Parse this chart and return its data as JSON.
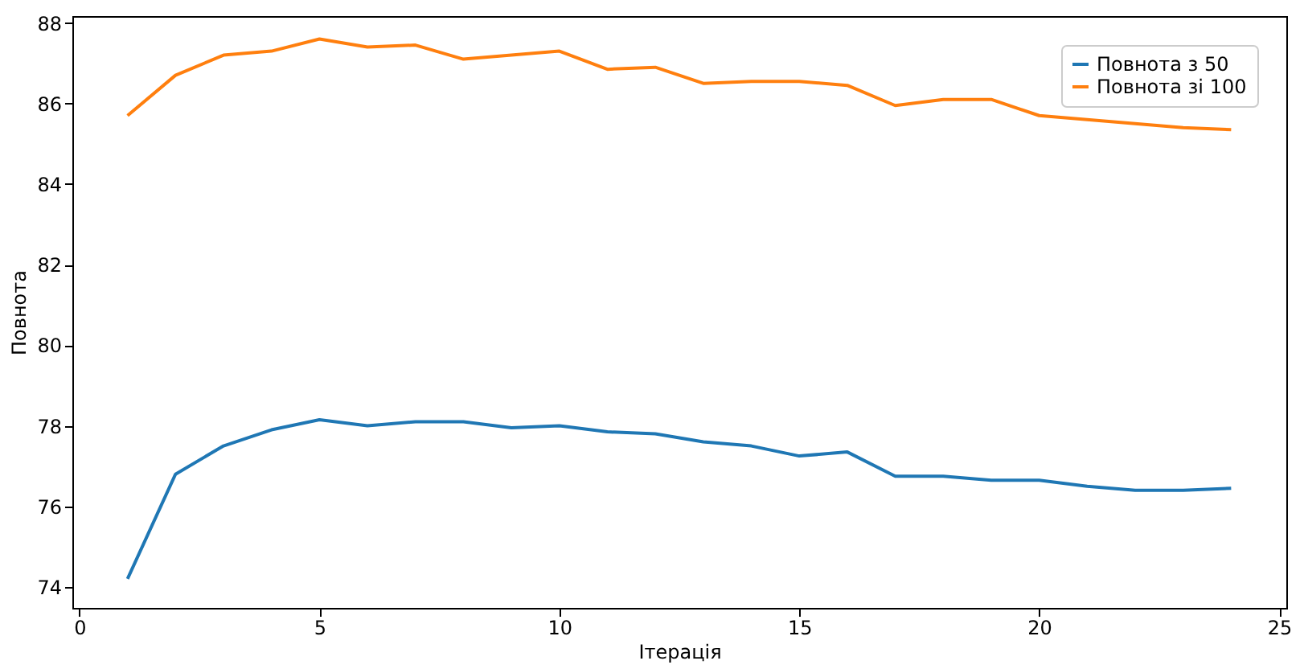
{
  "chart_data": {
    "type": "line",
    "xlabel": "Ітерація",
    "ylabel": "Повнота",
    "x": [
      1,
      2,
      3,
      4,
      5,
      6,
      7,
      8,
      9,
      10,
      11,
      12,
      13,
      14,
      15,
      16,
      17,
      18,
      19,
      20,
      21,
      22,
      23,
      24
    ],
    "series": [
      {
        "name": "Повнота з 50",
        "color": "#1f77b4",
        "values": [
          74.2,
          76.8,
          77.5,
          77.9,
          78.15,
          78.0,
          78.1,
          78.1,
          77.95,
          78.0,
          77.85,
          77.8,
          77.6,
          77.5,
          77.25,
          77.35,
          76.75,
          76.75,
          76.65,
          76.65,
          76.5,
          76.4,
          76.4,
          76.45
        ]
      },
      {
        "name": "Повнота зі 100",
        "color": "#ff7f0e",
        "values": [
          85.7,
          86.7,
          87.2,
          87.3,
          87.6,
          87.4,
          87.45,
          87.1,
          87.2,
          87.3,
          86.85,
          86.9,
          86.5,
          86.55,
          86.55,
          86.45,
          85.95,
          86.1,
          86.1,
          85.7,
          85.6,
          85.5,
          85.4,
          85.35
        ]
      }
    ],
    "xlim": [
      -0.15,
      25.15
    ],
    "xticks": [
      0,
      5,
      10,
      15,
      20,
      25
    ],
    "ylim": [
      73.48,
      88.17
    ],
    "yticks": [
      74,
      76,
      78,
      80,
      82,
      84,
      86,
      88
    ],
    "grid": false,
    "legend": "top right",
    "marker": "none",
    "line_style": "solid"
  }
}
